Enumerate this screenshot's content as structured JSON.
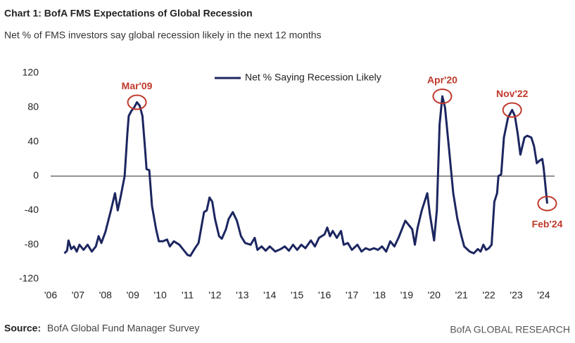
{
  "chart_data": {
    "type": "line",
    "title": "Chart 1: BofA FMS Expectations of Global Recession",
    "subtitle": "Net % of FMS investors say global recession likely in the next 12 months",
    "source_label": "Source:",
    "source": "BofA Global Fund Manager Survey",
    "footer": "BofA GLOBAL RESEARCH",
    "x": [
      2006.5,
      2006.6,
      2006.65,
      2006.75,
      2006.85,
      2006.95,
      2007.05,
      2007.2,
      2007.35,
      2007.5,
      2007.65,
      2007.75,
      2007.85,
      2008.0,
      2008.2,
      2008.35,
      2008.45,
      2008.55,
      2008.7,
      2008.8,
      2008.85,
      2008.95,
      2009.05,
      2009.15,
      2009.25,
      2009.35,
      2009.45,
      2009.5,
      2009.6,
      2009.7,
      2009.85,
      2009.95,
      2010.1,
      2010.25,
      2010.35,
      2010.5,
      2010.7,
      2010.85,
      2011.0,
      2011.1,
      2011.25,
      2011.4,
      2011.5,
      2011.6,
      2011.7,
      2011.8,
      2011.9,
      2012.0,
      2012.15,
      2012.25,
      2012.4,
      2012.5,
      2012.65,
      2012.8,
      2012.95,
      2013.1,
      2013.3,
      2013.45,
      2013.55,
      2013.7,
      2013.85,
      2014.0,
      2014.2,
      2014.4,
      2014.55,
      2014.7,
      2014.85,
      2015.0,
      2015.15,
      2015.3,
      2015.5,
      2015.65,
      2015.8,
      2016.0,
      2016.1,
      2016.2,
      2016.3,
      2016.45,
      2016.6,
      2016.7,
      2016.85,
      2017.0,
      2017.2,
      2017.35,
      2017.5,
      2017.65,
      2017.8,
      2017.95,
      2018.1,
      2018.25,
      2018.4,
      2018.55,
      2018.7,
      2018.85,
      2018.95,
      2019.05,
      2019.2,
      2019.3,
      2019.4,
      2019.55,
      2019.75,
      2019.85,
      2020.0,
      2020.1,
      2020.2,
      2020.3,
      2020.4,
      2020.55,
      2020.7,
      2020.85,
      2021.0,
      2021.1,
      2021.3,
      2021.45,
      2021.6,
      2021.7,
      2021.8,
      2021.9,
      2022.0,
      2022.1,
      2022.2,
      2022.3,
      2022.35,
      2022.45,
      2022.55,
      2022.7,
      2022.85,
      2022.95,
      2023.05,
      2023.15,
      2023.3,
      2023.4,
      2023.55,
      2023.65,
      2023.75,
      2023.85,
      2023.95,
      2024.0,
      2024.13
    ],
    "series": [
      {
        "name": "Net % Saying Recession Likely",
        "color": "#1c2660",
        "values": [
          -90,
          -87,
          -75,
          -85,
          -82,
          -88,
          -80,
          -86,
          -80,
          -88,
          -82,
          -70,
          -78,
          -65,
          -40,
          -20,
          -40,
          -25,
          0,
          50,
          70,
          76,
          80,
          86,
          82,
          70,
          30,
          8,
          7,
          -35,
          -62,
          -76,
          -76,
          -74,
          -82,
          -76,
          -80,
          -86,
          -92,
          -93,
          -85,
          -78,
          -60,
          -42,
          -40,
          -25,
          -30,
          -50,
          -70,
          -73,
          -62,
          -50,
          -42,
          -52,
          -70,
          -78,
          -80,
          -72,
          -86,
          -82,
          -87,
          -82,
          -88,
          -85,
          -82,
          -87,
          -80,
          -86,
          -80,
          -84,
          -75,
          -82,
          -72,
          -68,
          -60,
          -70,
          -64,
          -72,
          -64,
          -80,
          -78,
          -86,
          -80,
          -88,
          -84,
          -86,
          -84,
          -86,
          -82,
          -88,
          -76,
          -82,
          -72,
          -60,
          -52,
          -56,
          -62,
          -80,
          -60,
          -40,
          -20,
          -45,
          -75,
          -40,
          60,
          93,
          80,
          30,
          -20,
          -50,
          -70,
          -82,
          -88,
          -90,
          -85,
          -88,
          -80,
          -86,
          -84,
          -80,
          -30,
          -20,
          0,
          2,
          45,
          68,
          77,
          70,
          50,
          25,
          45,
          47,
          45,
          35,
          15,
          18,
          20,
          10,
          -32
        ]
      }
    ],
    "annotations": [
      {
        "label": "Mar'09",
        "x": 2009.15
      },
      {
        "label": "Apr'20",
        "x": 2020.3
      },
      {
        "label": "Nov'22",
        "x": 2022.85
      },
      {
        "label": "Feb'24",
        "x": 2024.13
      }
    ],
    "annotation_color": "#c0392b",
    "xlim": [
      2006,
      2024.4
    ],
    "xticks": [
      {
        "value": 2006,
        "label": "'06"
      },
      {
        "value": 2007,
        "label": "'07"
      },
      {
        "value": 2008,
        "label": "'08"
      },
      {
        "value": 2009,
        "label": "'09"
      },
      {
        "value": 2010,
        "label": "'10"
      },
      {
        "value": 2011,
        "label": "'11"
      },
      {
        "value": 2012,
        "label": "'12"
      },
      {
        "value": 2013,
        "label": "'13"
      },
      {
        "value": 2014,
        "label": "'14"
      },
      {
        "value": 2015,
        "label": "'15"
      },
      {
        "value": 2016,
        "label": "'16"
      },
      {
        "value": 2017,
        "label": "'17"
      },
      {
        "value": 2018,
        "label": "'18"
      },
      {
        "value": 2019,
        "label": "'19"
      },
      {
        "value": 2020,
        "label": "'20"
      },
      {
        "value": 2021,
        "label": "'21"
      },
      {
        "value": 2022,
        "label": "'22"
      },
      {
        "value": 2023,
        "label": "'23"
      },
      {
        "value": 2024,
        "label": "'24"
      }
    ],
    "ylim": [
      -120,
      120
    ],
    "yticks": [
      -120,
      -80,
      -40,
      0,
      40,
      80,
      120
    ],
    "zero_line": true,
    "legend": "top"
  }
}
